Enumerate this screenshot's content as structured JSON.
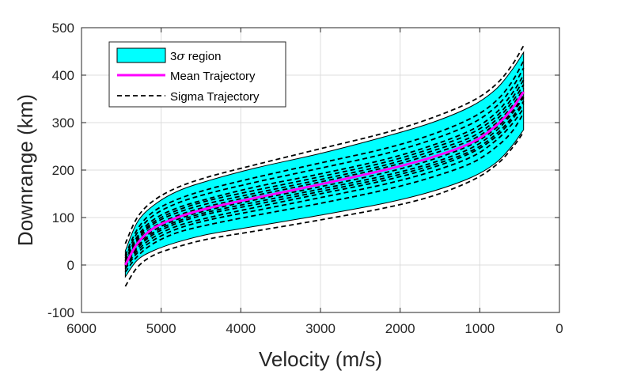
{
  "chart_data": {
    "type": "line",
    "title": "",
    "xlabel": "Velocity (m/s)",
    "ylabel": "Downrange (km)",
    "xlim": [
      0,
      6000
    ],
    "ylim": [
      -100,
      500
    ],
    "x_reversed": true,
    "x_ticks": [
      "6000",
      "5000",
      "4000",
      "3000",
      "2000",
      "1000",
      "0"
    ],
    "y_ticks": [
      "500",
      "400",
      "300",
      "200",
      "100",
      "0",
      "-100"
    ],
    "grid": true,
    "legend_position": "top-left",
    "legend": {
      "band_label_prefix": "3",
      "band_label_symbol": "σ",
      "band_label_suffix": " region",
      "mean_label": "Mean Trajectory",
      "sigma_label": "Sigma Trajectory"
    },
    "colors": {
      "band": "#00ffff",
      "mean": "#ff00ff",
      "sigma": "#000000"
    },
    "x": [
      5450,
      5300,
      5100,
      4800,
      4400,
      3800,
      3000,
      2200,
      1600,
      1100,
      800,
      600,
      450
    ],
    "band": {
      "name": "3σ region",
      "upper": [
        30,
        90,
        125,
        155,
        178,
        205,
        235,
        270,
        300,
        335,
        370,
        410,
        448
      ],
      "lower": [
        -25,
        10,
        30,
        48,
        65,
        82,
        105,
        130,
        155,
        185,
        215,
        250,
        285
      ]
    },
    "series": [
      {
        "name": "Mean Trajectory",
        "style": "solid",
        "values": [
          0,
          45,
          77,
          100,
          120,
          142,
          170,
          200,
          227,
          258,
          293,
          328,
          365
        ]
      },
      {
        "style": "dashed",
        "values": [
          -45,
          -5,
          20,
          38,
          55,
          72,
          95,
          120,
          145,
          178,
          210,
          245,
          280
        ]
      },
      {
        "style": "dashed",
        "values": [
          45,
          100,
          135,
          163,
          186,
          212,
          245,
          278,
          310,
          345,
          380,
          420,
          462
        ]
      },
      {
        "style": "dashed",
        "values": [
          -15,
          18,
          45,
          68,
          85,
          105,
          130,
          158,
          185,
          215,
          248,
          280,
          320
        ]
      },
      {
        "style": "dashed",
        "values": [
          20,
          75,
          112,
          138,
          160,
          185,
          215,
          245,
          275,
          310,
          345,
          385,
          430
        ]
      },
      {
        "style": "dashed",
        "values": [
          -5,
          30,
          58,
          82,
          100,
          122,
          150,
          178,
          205,
          237,
          270,
          305,
          340
        ]
      },
      {
        "style": "dashed",
        "values": [
          10,
          60,
          95,
          120,
          140,
          165,
          192,
          222,
          252,
          285,
          320,
          360,
          400
        ]
      },
      {
        "style": "dashed",
        "values": [
          0,
          38,
          68,
          92,
          112,
          133,
          160,
          188,
          215,
          247,
          282,
          318,
          353
        ]
      },
      {
        "style": "dashed",
        "values": [
          5,
          52,
          86,
          110,
          130,
          152,
          180,
          210,
          240,
          270,
          305,
          342,
          380
        ]
      },
      {
        "style": "dashed",
        "values": [
          -2,
          42,
          72,
          96,
          116,
          138,
          165,
          194,
          222,
          254,
          288,
          322,
          358
        ]
      },
      {
        "style": "dashed",
        "values": [
          3,
          48,
          80,
          104,
          124,
          147,
          175,
          205,
          234,
          264,
          298,
          334,
          372
        ]
      },
      {
        "style": "dashed",
        "values": [
          -8,
          25,
          52,
          76,
          95,
          115,
          142,
          170,
          197,
          228,
          262,
          296,
          330
        ]
      },
      {
        "style": "dashed",
        "values": [
          15,
          68,
          104,
          130,
          151,
          175,
          204,
          234,
          264,
          298,
          333,
          372,
          415
        ]
      },
      {
        "style": "dashed",
        "values": [
          -3,
          35,
          64,
          88,
          108,
          128,
          155,
          183,
          210,
          241,
          275,
          310,
          345
        ]
      },
      {
        "style": "dashed",
        "values": [
          8,
          56,
          90,
          115,
          136,
          158,
          186,
          216,
          246,
          278,
          312,
          350,
          390
        ]
      }
    ]
  }
}
